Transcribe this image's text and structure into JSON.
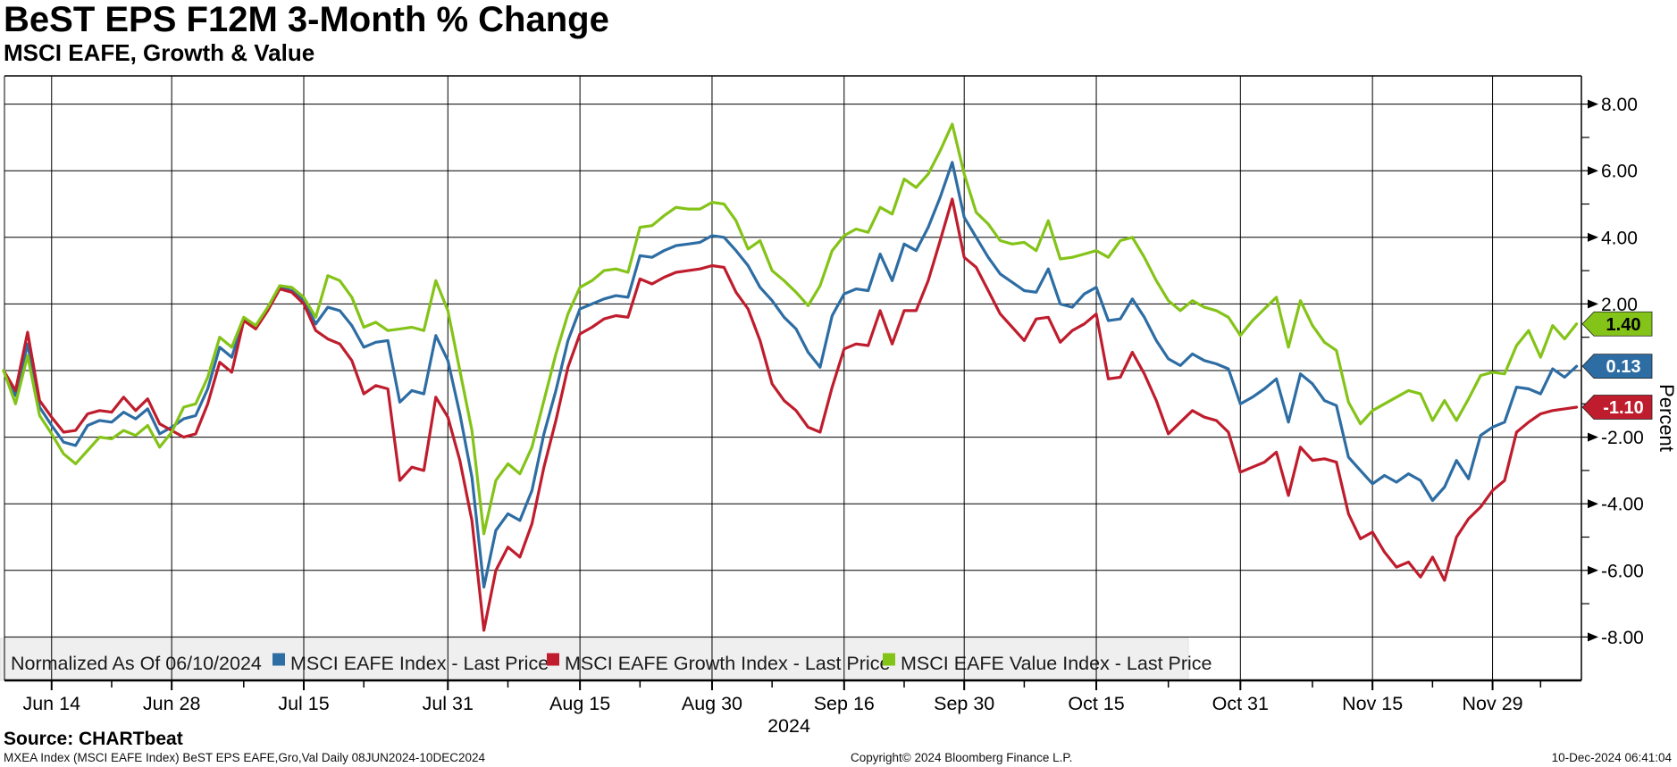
{
  "window": {
    "title": "BeST EPS F12M 3-Month % Change",
    "subtitle": "MSCI EAFE, Growth & Value"
  },
  "legend": {
    "normalized_label": "Normalized As Of 06/10/2024",
    "items": [
      {
        "label": "MSCI EAFE Index - Last Price",
        "color": "#2d6da3"
      },
      {
        "label": "MSCI EAFE Growth Index - Last Price",
        "color": "#bf1d2d"
      },
      {
        "label": "MSCI EAFE Value Index - Last Price",
        "color": "#84c318"
      }
    ]
  },
  "y_axis": {
    "label": "Percent",
    "major_tick_labels": [
      "8.00",
      "6.00",
      "4.00",
      "2.00",
      "-2.00",
      "-4.00",
      "-6.00",
      "-8.00"
    ]
  },
  "x_axis": {
    "year": "2024",
    "tick_labels": [
      "Jun 14",
      "Jun 28",
      "Jul 15",
      "Jul 31",
      "Aug 15",
      "Aug 30",
      "Sep 16",
      "Sep 30",
      "Oct 15",
      "Oct 31",
      "Nov 15",
      "Nov 29"
    ]
  },
  "last_price_badges": [
    {
      "label": "1.40",
      "fill": "#84c318",
      "text_color": "#000000",
      "value": 1.4
    },
    {
      "label": "0.13",
      "fill": "#2d6da3",
      "text_color": "#ffffff",
      "value": 0.13
    },
    {
      "label": "-1.10",
      "fill": "#bf1d2d",
      "text_color": "#ffffff",
      "value": -1.1
    }
  ],
  "footer": {
    "source": "Source: CHARTbeat",
    "description": "MXEA Index (MSCI EAFE Index) BeST EPS EAFE,Gro,Val  Daily 08JUN2024-10DEC2024",
    "copyright": "Copyright© 2024 Bloomberg Finance L.P.",
    "timestamp": "10-Dec-2024 06:41:04"
  },
  "chart_data": {
    "type": "line",
    "title": "BeST EPS F12M 3-Month % Change",
    "subtitle": "MSCI EAFE, Growth & Value",
    "ylabel": "Percent",
    "ylim": [
      -9.3,
      8.9
    ],
    "y_gridline_step": 2,
    "grid": "on",
    "legend_position": "bottom-strip",
    "normalized_as_of": "06/10/2024",
    "x_unit": "trading-day index, 0 = 10-Jun-2024, 131 = 10-Dec-2024",
    "x_ticks": [
      {
        "label": "Jun 14",
        "i": 4
      },
      {
        "label": "Jun 28",
        "i": 14
      },
      {
        "label": "Jul 15",
        "i": 25
      },
      {
        "label": "Jul 31",
        "i": 37
      },
      {
        "label": "Aug 15",
        "i": 48
      },
      {
        "label": "Aug 30",
        "i": 59
      },
      {
        "label": "Sep 16",
        "i": 70
      },
      {
        "label": "Sep 30",
        "i": 80
      },
      {
        "label": "Oct 15",
        "i": 91
      },
      {
        "label": "Oct 31",
        "i": 103
      },
      {
        "label": "Nov 15",
        "i": 114
      },
      {
        "label": "Nov 29",
        "i": 124
      }
    ],
    "x_minor_ticks": [
      9,
      20,
      30,
      42,
      53,
      64,
      75,
      85,
      97,
      109,
      119,
      128
    ],
    "series": [
      {
        "name": "MSCI EAFE Index - Last Price",
        "color": "#2d6da3",
        "last_value_label": "0.13",
        "values": [
          0.0,
          -0.75,
          0.8,
          -1.1,
          -1.65,
          -2.15,
          -2.25,
          -1.65,
          -1.5,
          -1.55,
          -1.25,
          -1.45,
          -1.15,
          -1.9,
          -1.7,
          -1.45,
          -1.35,
          -0.55,
          0.7,
          0.4,
          1.55,
          1.3,
          1.85,
          2.5,
          2.4,
          2.1,
          1.4,
          1.9,
          1.8,
          1.35,
          0.7,
          0.85,
          0.9,
          -0.95,
          -0.6,
          -0.7,
          1.05,
          0.3,
          -1.3,
          -3.2,
          -6.5,
          -4.8,
          -4.3,
          -4.5,
          -3.6,
          -1.9,
          -0.6,
          0.9,
          1.85,
          2.0,
          2.15,
          2.25,
          2.2,
          3.45,
          3.4,
          3.6,
          3.75,
          3.8,
          3.85,
          4.05,
          4.0,
          3.6,
          3.15,
          2.5,
          2.1,
          1.6,
          1.25,
          0.55,
          0.1,
          1.65,
          2.3,
          2.45,
          2.4,
          3.5,
          2.7,
          3.8,
          3.6,
          4.3,
          5.2,
          6.25,
          4.6,
          4.0,
          3.4,
          2.9,
          2.65,
          2.4,
          2.35,
          3.05,
          2.0,
          1.9,
          2.3,
          2.5,
          1.5,
          1.55,
          2.15,
          1.6,
          0.9,
          0.35,
          0.15,
          0.5,
          0.3,
          0.2,
          0.05,
          -1.0,
          -0.8,
          -0.55,
          -0.25,
          -1.55,
          -0.1,
          -0.4,
          -0.9,
          -1.05,
          -2.6,
          -3.0,
          -3.4,
          -3.15,
          -3.35,
          -3.1,
          -3.3,
          -3.9,
          -3.5,
          -2.7,
          -3.25,
          -1.95,
          -1.7,
          -1.55,
          -0.5,
          -0.55,
          -0.7,
          0.05,
          -0.2,
          0.13
        ]
      },
      {
        "name": "MSCI EAFE Growth Index - Last Price",
        "color": "#bf1d2d",
        "last_value_label": "-1.10",
        "values": [
          0.0,
          -0.6,
          1.15,
          -0.9,
          -1.4,
          -1.85,
          -1.8,
          -1.3,
          -1.2,
          -1.25,
          -0.8,
          -1.2,
          -0.85,
          -1.6,
          -1.8,
          -2.0,
          -1.9,
          -1.0,
          0.25,
          -0.05,
          1.5,
          1.25,
          1.8,
          2.45,
          2.35,
          2.0,
          1.2,
          0.95,
          0.8,
          0.3,
          -0.7,
          -0.45,
          -0.55,
          -3.3,
          -2.9,
          -3.0,
          -0.8,
          -1.4,
          -2.7,
          -4.5,
          -7.8,
          -6.0,
          -5.3,
          -5.6,
          -4.6,
          -2.9,
          -1.5,
          0.1,
          1.1,
          1.3,
          1.55,
          1.65,
          1.6,
          2.75,
          2.6,
          2.8,
          2.95,
          3.0,
          3.05,
          3.15,
          3.1,
          2.35,
          1.85,
          0.9,
          -0.4,
          -0.9,
          -1.2,
          -1.7,
          -1.85,
          -0.5,
          0.65,
          0.8,
          0.75,
          1.8,
          0.8,
          1.8,
          1.8,
          2.7,
          3.9,
          5.15,
          3.4,
          3.1,
          2.4,
          1.7,
          1.3,
          0.9,
          1.55,
          1.6,
          0.85,
          1.2,
          1.4,
          1.7,
          -0.25,
          -0.2,
          0.55,
          -0.1,
          -0.9,
          -1.9,
          -1.55,
          -1.2,
          -1.4,
          -1.5,
          -1.85,
          -3.05,
          -2.9,
          -2.75,
          -2.45,
          -3.75,
          -2.3,
          -2.7,
          -2.65,
          -2.75,
          -4.3,
          -5.05,
          -4.85,
          -5.45,
          -5.9,
          -5.75,
          -6.2,
          -5.6,
          -6.3,
          -5.0,
          -4.45,
          -4.1,
          -3.6,
          -3.3,
          -1.85,
          -1.55,
          -1.3,
          -1.2,
          -1.15,
          -1.1
        ]
      },
      {
        "name": "MSCI EAFE Value Index - Last Price",
        "color": "#84c318",
        "last_value_label": "1.40",
        "values": [
          0.0,
          -1.0,
          0.45,
          -1.35,
          -1.9,
          -2.5,
          -2.8,
          -2.4,
          -2.0,
          -2.05,
          -1.8,
          -1.95,
          -1.65,
          -2.3,
          -1.85,
          -1.1,
          -1.0,
          -0.2,
          1.0,
          0.7,
          1.6,
          1.35,
          1.9,
          2.55,
          2.5,
          2.2,
          1.6,
          2.85,
          2.7,
          2.2,
          1.3,
          1.45,
          1.2,
          1.25,
          1.3,
          1.2,
          2.7,
          1.8,
          0.0,
          -1.8,
          -4.9,
          -3.3,
          -2.8,
          -3.1,
          -2.3,
          -0.9,
          0.5,
          1.7,
          2.5,
          2.7,
          3.0,
          3.05,
          2.95,
          4.3,
          4.35,
          4.65,
          4.9,
          4.85,
          4.85,
          5.05,
          5.0,
          4.5,
          3.65,
          3.9,
          3.0,
          2.7,
          2.35,
          1.95,
          2.55,
          3.6,
          4.05,
          4.25,
          4.15,
          4.9,
          4.7,
          5.75,
          5.5,
          5.9,
          6.6,
          7.4,
          5.9,
          4.75,
          4.4,
          3.9,
          3.8,
          3.85,
          3.6,
          4.5,
          3.35,
          3.4,
          3.5,
          3.6,
          3.4,
          3.9,
          4.0,
          3.4,
          2.7,
          2.1,
          1.8,
          2.1,
          1.9,
          1.8,
          1.6,
          1.05,
          1.5,
          1.85,
          2.2,
          0.7,
          2.1,
          1.35,
          0.85,
          0.6,
          -0.95,
          -1.6,
          -1.2,
          -1.0,
          -0.8,
          -0.6,
          -0.7,
          -1.5,
          -0.9,
          -1.5,
          -0.85,
          -0.15,
          -0.05,
          -0.1,
          0.75,
          1.2,
          0.4,
          1.35,
          0.95,
          1.4
        ]
      }
    ]
  }
}
